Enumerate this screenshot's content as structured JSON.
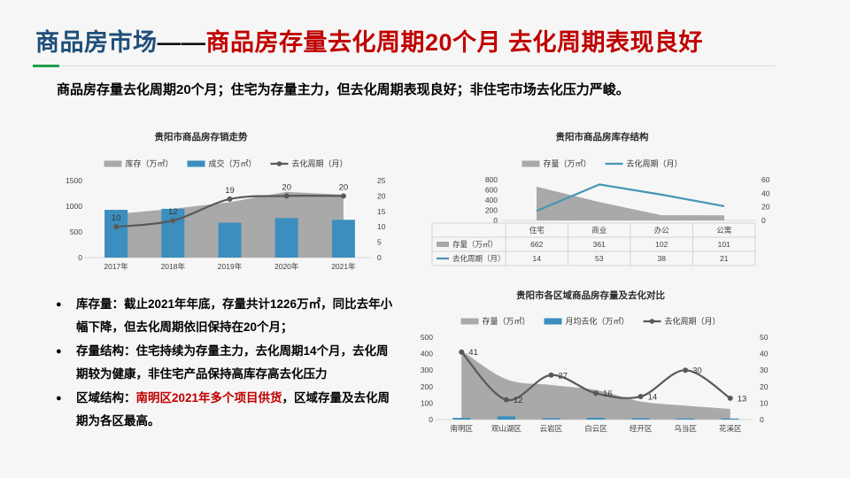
{
  "header": {
    "topic": "商品房市场",
    "dash": "——",
    "statement": "商品房存量去化周期20个月 去化周期表现良好"
  },
  "subtitle": "商品房存量去化周期20个月；住宅为存量主力，但去化周期表现良好；非住宅市场去化压力严峻。",
  "bullet_marker": "●",
  "bullets": [
    {
      "label": "库存量：",
      "text": "截止2021年年底，存量共计1226万㎡，同比去年小幅下降，但去化周期依旧保持在20个月；"
    },
    {
      "label": "存量结构：",
      "text": "住宅持续为存量主力，去化周期14个月，去化周期较为健康，非住宅产品保持高库存高去化压力"
    },
    {
      "label": "区域结构：",
      "red": "南明区2021年多个项目供货",
      "tail": "，区域存量及去化周期为各区最高。"
    }
  ],
  "colors": {
    "title_blue": "#1f4e79",
    "title_red": "#c00000",
    "accent_green": "#21a14d",
    "bar_blue": "#3c8ebf",
    "line_blue": "#4795b5",
    "area_gray": "#a9a9a9",
    "line_gray": "#595959"
  },
  "chart_data": [
    {
      "type": "combo-area-bar-line",
      "title": "贵阳市商品房存销走势",
      "categories": [
        "2017年",
        "2018年",
        "2019年",
        "2020年",
        "2021年"
      ],
      "series": [
        {
          "name": "库存（万㎡）",
          "type": "area",
          "axis": "left",
          "color": "#a9a9a9",
          "values": [
            850,
            950,
            1080,
            1280,
            1226
          ]
        },
        {
          "name": "成交（万㎡）",
          "type": "bar",
          "axis": "left",
          "color": "#3c8ebf",
          "values": [
            930,
            950,
            680,
            770,
            736
          ]
        },
        {
          "name": "去化周期（月）",
          "type": "line",
          "axis": "right",
          "color": "#595959",
          "values": [
            10,
            12,
            19,
            20,
            20
          ],
          "markers": true,
          "labels": true
        }
      ],
      "left_axis": {
        "min": 0,
        "max": 1500,
        "ticks": [
          0,
          500,
          1000,
          1500
        ]
      },
      "right_axis": {
        "min": 0,
        "max": 25,
        "ticks": [
          0,
          5,
          10,
          15,
          20,
          25
        ]
      },
      "legend_position": "top",
      "grid": false
    },
    {
      "type": "combo-area-line-with-table",
      "title": "贵阳市商品房库存结构",
      "categories": [
        "住宅",
        "商业",
        "办公",
        "公寓"
      ],
      "series": [
        {
          "name": "存量（万㎡）",
          "type": "area",
          "axis": "left",
          "color": "#a9a9a9",
          "values": [
            662,
            361,
            102,
            101
          ]
        },
        {
          "name": "去化周期（月）",
          "type": "line",
          "axis": "right",
          "color": "#4795b5",
          "values": [
            14,
            53,
            38,
            21
          ],
          "markers": false,
          "labels": false
        }
      ],
      "left_axis": {
        "min": 0,
        "max": 800,
        "ticks": [
          0,
          200,
          400,
          600,
          800
        ]
      },
      "right_axis": {
        "min": 0,
        "max": 60,
        "ticks": [
          0,
          20,
          40,
          60
        ]
      },
      "legend_position": "top",
      "grid": false,
      "data_table": true
    },
    {
      "type": "combo-area-bar-line",
      "title": "贵阳市各区域商品房存量及去化对比",
      "categories": [
        "南明区",
        "观山湖区",
        "云岩区",
        "白云区",
        "经开区",
        "乌当区",
        "花溪区"
      ],
      "series": [
        {
          "name": "存量（万㎡）",
          "type": "area",
          "axis": "left",
          "color": "#a9a9a9",
          "values": [
            420,
            245,
            210,
            180,
            110,
            85,
            65
          ]
        },
        {
          "name": "月均去化（万㎡）",
          "type": "bar",
          "axis": "left",
          "color": "#3c8ebf",
          "values": [
            10,
            20,
            8,
            11,
            8,
            3,
            5
          ]
        },
        {
          "name": "去化周期（月）",
          "type": "line",
          "axis": "right",
          "color": "#595959",
          "values": [
            41,
            12,
            27,
            16,
            14,
            30,
            13
          ],
          "markers": true,
          "labels": true
        }
      ],
      "left_axis": {
        "min": 0,
        "max": 500,
        "ticks": [
          0,
          100,
          200,
          300,
          400,
          500
        ]
      },
      "right_axis": {
        "min": 0,
        "max": 50,
        "ticks": [
          0,
          10,
          20,
          30,
          40,
          50
        ]
      },
      "legend_position": "top",
      "grid": false
    }
  ]
}
